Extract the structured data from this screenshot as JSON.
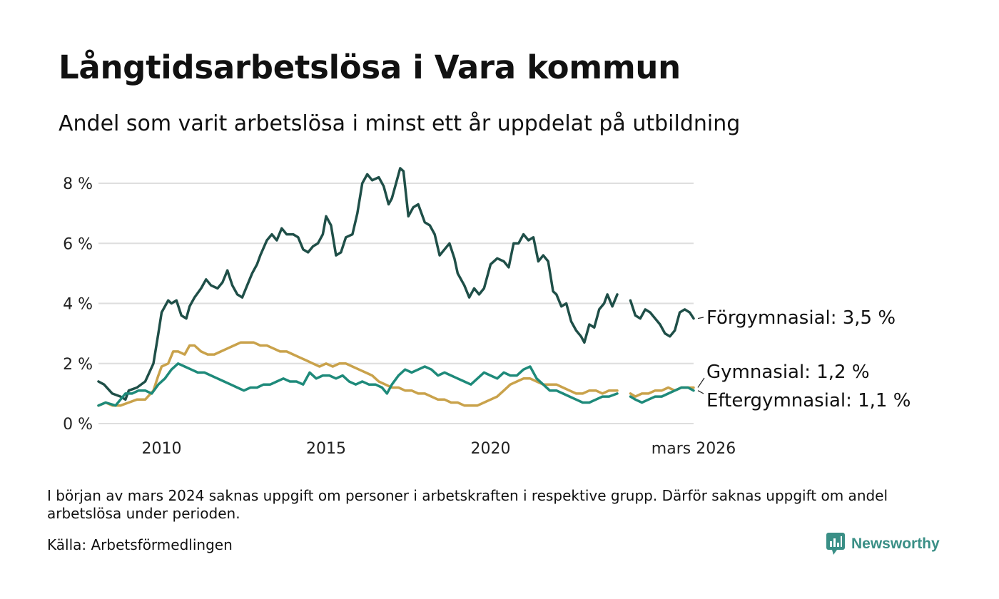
{
  "title": "Långtidsarbetslösa i Vara kommun",
  "subtitle": "Andel som varit arbetslösa i minst ett år uppdelat på utbildning",
  "note": "I början av mars 2024 saknas uppgift om personer i arbetskraften i respektive grupp. Därför saknas uppgift om andel arbetslösa under perioden.",
  "source": "Källa: Arbetsförmedlingen",
  "brand": {
    "name": "Newsworthy",
    "icon": "newsworthy-logo-icon",
    "color": "#3a8f86"
  },
  "chart_data": {
    "type": "line",
    "ylim": [
      0,
      8.8
    ],
    "xlim": [
      2008.08,
      2026.17
    ],
    "y_ticks": [
      {
        "value": 0,
        "label": "0 %"
      },
      {
        "value": 2,
        "label": "2 %"
      },
      {
        "value": 4,
        "label": "4 %"
      },
      {
        "value": 6,
        "label": "6 %"
      },
      {
        "value": 8,
        "label": "8 %"
      }
    ],
    "x_ticks": [
      {
        "value": 2010,
        "label": "2010"
      },
      {
        "value": 2015,
        "label": "2015"
      },
      {
        "value": 2020,
        "label": "2020"
      },
      {
        "value": 2026.17,
        "label": "mars 2026"
      }
    ],
    "grid": true,
    "gap": [
      2024.17,
      2024.25
    ],
    "series": [
      {
        "name": "Förgymnasial",
        "label": "Förgymnasial: 3,5 %",
        "color": "#1f4f48",
        "points": [
          [
            2008.08,
            1.4
          ],
          [
            2008.25,
            1.3
          ],
          [
            2008.5,
            1.0
          ],
          [
            2008.75,
            0.9
          ],
          [
            2008.9,
            0.8
          ],
          [
            2009.0,
            1.1
          ],
          [
            2009.25,
            1.2
          ],
          [
            2009.5,
            1.4
          ],
          [
            2009.75,
            2.0
          ],
          [
            2009.9,
            3.0
          ],
          [
            2010.0,
            3.7
          ],
          [
            2010.2,
            4.1
          ],
          [
            2010.3,
            4.0
          ],
          [
            2010.45,
            4.1
          ],
          [
            2010.6,
            3.6
          ],
          [
            2010.75,
            3.5
          ],
          [
            2010.85,
            3.9
          ],
          [
            2011.0,
            4.2
          ],
          [
            2011.2,
            4.5
          ],
          [
            2011.35,
            4.8
          ],
          [
            2011.5,
            4.6
          ],
          [
            2011.7,
            4.5
          ],
          [
            2011.85,
            4.7
          ],
          [
            2012.0,
            5.1
          ],
          [
            2012.15,
            4.6
          ],
          [
            2012.3,
            4.3
          ],
          [
            2012.45,
            4.2
          ],
          [
            2012.6,
            4.6
          ],
          [
            2012.75,
            5.0
          ],
          [
            2012.9,
            5.3
          ],
          [
            2013.0,
            5.6
          ],
          [
            2013.2,
            6.1
          ],
          [
            2013.35,
            6.3
          ],
          [
            2013.5,
            6.1
          ],
          [
            2013.65,
            6.5
          ],
          [
            2013.8,
            6.3
          ],
          [
            2014.0,
            6.3
          ],
          [
            2014.15,
            6.2
          ],
          [
            2014.3,
            5.8
          ],
          [
            2014.45,
            5.7
          ],
          [
            2014.6,
            5.9
          ],
          [
            2014.75,
            6.0
          ],
          [
            2014.9,
            6.3
          ],
          [
            2015.0,
            6.9
          ],
          [
            2015.15,
            6.6
          ],
          [
            2015.3,
            5.6
          ],
          [
            2015.45,
            5.7
          ],
          [
            2015.6,
            6.2
          ],
          [
            2015.8,
            6.3
          ],
          [
            2015.95,
            7.0
          ],
          [
            2016.1,
            8.0
          ],
          [
            2016.25,
            8.3
          ],
          [
            2016.4,
            8.1
          ],
          [
            2016.6,
            8.2
          ],
          [
            2016.75,
            7.9
          ],
          [
            2016.9,
            7.3
          ],
          [
            2017.0,
            7.5
          ],
          [
            2017.15,
            8.1
          ],
          [
            2017.25,
            8.5
          ],
          [
            2017.35,
            8.4
          ],
          [
            2017.5,
            6.9
          ],
          [
            2017.65,
            7.2
          ],
          [
            2017.8,
            7.3
          ],
          [
            2018.0,
            6.7
          ],
          [
            2018.15,
            6.6
          ],
          [
            2018.3,
            6.3
          ],
          [
            2018.45,
            5.6
          ],
          [
            2018.6,
            5.8
          ],
          [
            2018.75,
            6.0
          ],
          [
            2018.9,
            5.5
          ],
          [
            2019.0,
            5.0
          ],
          [
            2019.2,
            4.6
          ],
          [
            2019.35,
            4.2
          ],
          [
            2019.5,
            4.5
          ],
          [
            2019.65,
            4.3
          ],
          [
            2019.8,
            4.5
          ],
          [
            2020.0,
            5.3
          ],
          [
            2020.2,
            5.5
          ],
          [
            2020.4,
            5.4
          ],
          [
            2020.55,
            5.2
          ],
          [
            2020.7,
            6.0
          ],
          [
            2020.85,
            6.0
          ],
          [
            2021.0,
            6.3
          ],
          [
            2021.15,
            6.1
          ],
          [
            2021.3,
            6.2
          ],
          [
            2021.45,
            5.4
          ],
          [
            2021.6,
            5.6
          ],
          [
            2021.75,
            5.4
          ],
          [
            2021.9,
            4.4
          ],
          [
            2022.0,
            4.3
          ],
          [
            2022.15,
            3.9
          ],
          [
            2022.3,
            4.0
          ],
          [
            2022.45,
            3.4
          ],
          [
            2022.6,
            3.1
          ],
          [
            2022.75,
            2.9
          ],
          [
            2022.85,
            2.7
          ],
          [
            2023.0,
            3.3
          ],
          [
            2023.15,
            3.2
          ],
          [
            2023.3,
            3.8
          ],
          [
            2023.45,
            4.0
          ],
          [
            2023.55,
            4.3
          ],
          [
            2023.7,
            3.9
          ],
          [
            2023.85,
            4.3
          ],
          [
            2024.25,
            4.1
          ],
          [
            2024.4,
            3.6
          ],
          [
            2024.55,
            3.5
          ],
          [
            2024.7,
            3.8
          ],
          [
            2024.85,
            3.7
          ],
          [
            2025.0,
            3.5
          ],
          [
            2025.15,
            3.3
          ],
          [
            2025.3,
            3.0
          ],
          [
            2025.45,
            2.9
          ],
          [
            2025.6,
            3.1
          ],
          [
            2025.75,
            3.7
          ],
          [
            2025.9,
            3.8
          ],
          [
            2026.05,
            3.7
          ],
          [
            2026.17,
            3.5
          ]
        ]
      },
      {
        "name": "Gymnasial",
        "label": "Gymnasial: 1,2 %",
        "color": "#c9a24b",
        "points": [
          [
            2008.08,
            0.6
          ],
          [
            2008.3,
            0.7
          ],
          [
            2008.5,
            0.6
          ],
          [
            2008.75,
            0.6
          ],
          [
            2009.0,
            0.7
          ],
          [
            2009.25,
            0.8
          ],
          [
            2009.5,
            0.8
          ],
          [
            2009.75,
            1.1
          ],
          [
            2009.9,
            1.6
          ],
          [
            2010.0,
            1.9
          ],
          [
            2010.2,
            2.0
          ],
          [
            2010.35,
            2.4
          ],
          [
            2010.5,
            2.4
          ],
          [
            2010.7,
            2.3
          ],
          [
            2010.85,
            2.6
          ],
          [
            2011.0,
            2.6
          ],
          [
            2011.2,
            2.4
          ],
          [
            2011.4,
            2.3
          ],
          [
            2011.6,
            2.3
          ],
          [
            2011.8,
            2.4
          ],
          [
            2012.0,
            2.5
          ],
          [
            2012.2,
            2.6
          ],
          [
            2012.4,
            2.7
          ],
          [
            2012.6,
            2.7
          ],
          [
            2012.8,
            2.7
          ],
          [
            2013.0,
            2.6
          ],
          [
            2013.2,
            2.6
          ],
          [
            2013.4,
            2.5
          ],
          [
            2013.6,
            2.4
          ],
          [
            2013.8,
            2.4
          ],
          [
            2014.0,
            2.3
          ],
          [
            2014.2,
            2.2
          ],
          [
            2014.4,
            2.1
          ],
          [
            2014.6,
            2.0
          ],
          [
            2014.8,
            1.9
          ],
          [
            2015.0,
            2.0
          ],
          [
            2015.2,
            1.9
          ],
          [
            2015.4,
            2.0
          ],
          [
            2015.6,
            2.0
          ],
          [
            2015.8,
            1.9
          ],
          [
            2016.0,
            1.8
          ],
          [
            2016.2,
            1.7
          ],
          [
            2016.4,
            1.6
          ],
          [
            2016.6,
            1.4
          ],
          [
            2016.8,
            1.3
          ],
          [
            2017.0,
            1.2
          ],
          [
            2017.2,
            1.2
          ],
          [
            2017.4,
            1.1
          ],
          [
            2017.6,
            1.1
          ],
          [
            2017.8,
            1.0
          ],
          [
            2018.0,
            1.0
          ],
          [
            2018.2,
            0.9
          ],
          [
            2018.4,
            0.8
          ],
          [
            2018.6,
            0.8
          ],
          [
            2018.8,
            0.7
          ],
          [
            2019.0,
            0.7
          ],
          [
            2019.2,
            0.6
          ],
          [
            2019.4,
            0.6
          ],
          [
            2019.6,
            0.6
          ],
          [
            2019.8,
            0.7
          ],
          [
            2020.0,
            0.8
          ],
          [
            2020.2,
            0.9
          ],
          [
            2020.4,
            1.1
          ],
          [
            2020.6,
            1.3
          ],
          [
            2020.8,
            1.4
          ],
          [
            2021.0,
            1.5
          ],
          [
            2021.2,
            1.5
          ],
          [
            2021.4,
            1.4
          ],
          [
            2021.6,
            1.3
          ],
          [
            2021.8,
            1.3
          ],
          [
            2022.0,
            1.3
          ],
          [
            2022.2,
            1.2
          ],
          [
            2022.4,
            1.1
          ],
          [
            2022.6,
            1.0
          ],
          [
            2022.8,
            1.0
          ],
          [
            2023.0,
            1.1
          ],
          [
            2023.2,
            1.1
          ],
          [
            2023.4,
            1.0
          ],
          [
            2023.6,
            1.1
          ],
          [
            2023.85,
            1.1
          ],
          [
            2024.25,
            1.0
          ],
          [
            2024.4,
            0.9
          ],
          [
            2024.6,
            1.0
          ],
          [
            2024.8,
            1.0
          ],
          [
            2025.0,
            1.1
          ],
          [
            2025.2,
            1.1
          ],
          [
            2025.4,
            1.2
          ],
          [
            2025.6,
            1.1
          ],
          [
            2025.8,
            1.2
          ],
          [
            2026.0,
            1.2
          ],
          [
            2026.17,
            1.2
          ]
        ]
      },
      {
        "name": "Eftergymnasial",
        "label": "Eftergymnasial: 1,1 %",
        "color": "#1e8a7a",
        "points": [
          [
            2008.08,
            0.6
          ],
          [
            2008.3,
            0.7
          ],
          [
            2008.6,
            0.6
          ],
          [
            2008.9,
            1.0
          ],
          [
            2009.1,
            1.0
          ],
          [
            2009.3,
            1.1
          ],
          [
            2009.5,
            1.1
          ],
          [
            2009.7,
            1.0
          ],
          [
            2009.9,
            1.3
          ],
          [
            2010.1,
            1.5
          ],
          [
            2010.3,
            1.8
          ],
          [
            2010.5,
            2.0
          ],
          [
            2010.7,
            1.9
          ],
          [
            2010.9,
            1.8
          ],
          [
            2011.1,
            1.7
          ],
          [
            2011.3,
            1.7
          ],
          [
            2011.5,
            1.6
          ],
          [
            2011.7,
            1.5
          ],
          [
            2011.9,
            1.4
          ],
          [
            2012.1,
            1.3
          ],
          [
            2012.3,
            1.2
          ],
          [
            2012.5,
            1.1
          ],
          [
            2012.7,
            1.2
          ],
          [
            2012.9,
            1.2
          ],
          [
            2013.1,
            1.3
          ],
          [
            2013.3,
            1.3
          ],
          [
            2013.5,
            1.4
          ],
          [
            2013.7,
            1.5
          ],
          [
            2013.9,
            1.4
          ],
          [
            2014.1,
            1.4
          ],
          [
            2014.3,
            1.3
          ],
          [
            2014.5,
            1.7
          ],
          [
            2014.7,
            1.5
          ],
          [
            2014.9,
            1.6
          ],
          [
            2015.1,
            1.6
          ],
          [
            2015.3,
            1.5
          ],
          [
            2015.5,
            1.6
          ],
          [
            2015.7,
            1.4
          ],
          [
            2015.9,
            1.3
          ],
          [
            2016.1,
            1.4
          ],
          [
            2016.3,
            1.3
          ],
          [
            2016.5,
            1.3
          ],
          [
            2016.7,
            1.2
          ],
          [
            2016.85,
            1.0
          ],
          [
            2017.0,
            1.3
          ],
          [
            2017.2,
            1.6
          ],
          [
            2017.4,
            1.8
          ],
          [
            2017.6,
            1.7
          ],
          [
            2017.8,
            1.8
          ],
          [
            2018.0,
            1.9
          ],
          [
            2018.2,
            1.8
          ],
          [
            2018.4,
            1.6
          ],
          [
            2018.6,
            1.7
          ],
          [
            2018.8,
            1.6
          ],
          [
            2019.0,
            1.5
          ],
          [
            2019.2,
            1.4
          ],
          [
            2019.4,
            1.3
          ],
          [
            2019.6,
            1.5
          ],
          [
            2019.8,
            1.7
          ],
          [
            2020.0,
            1.6
          ],
          [
            2020.2,
            1.5
          ],
          [
            2020.4,
            1.7
          ],
          [
            2020.6,
            1.6
          ],
          [
            2020.8,
            1.6
          ],
          [
            2021.0,
            1.8
          ],
          [
            2021.2,
            1.9
          ],
          [
            2021.4,
            1.5
          ],
          [
            2021.6,
            1.3
          ],
          [
            2021.8,
            1.1
          ],
          [
            2022.0,
            1.1
          ],
          [
            2022.2,
            1.0
          ],
          [
            2022.4,
            0.9
          ],
          [
            2022.6,
            0.8
          ],
          [
            2022.8,
            0.7
          ],
          [
            2023.0,
            0.7
          ],
          [
            2023.2,
            0.8
          ],
          [
            2023.4,
            0.9
          ],
          [
            2023.6,
            0.9
          ],
          [
            2023.85,
            1.0
          ],
          [
            2024.25,
            0.9
          ],
          [
            2024.4,
            0.8
          ],
          [
            2024.6,
            0.7
          ],
          [
            2024.8,
            0.8
          ],
          [
            2025.0,
            0.9
          ],
          [
            2025.2,
            0.9
          ],
          [
            2025.4,
            1.0
          ],
          [
            2025.6,
            1.1
          ],
          [
            2025.8,
            1.2
          ],
          [
            2026.0,
            1.2
          ],
          [
            2026.17,
            1.1
          ]
        ]
      }
    ]
  }
}
